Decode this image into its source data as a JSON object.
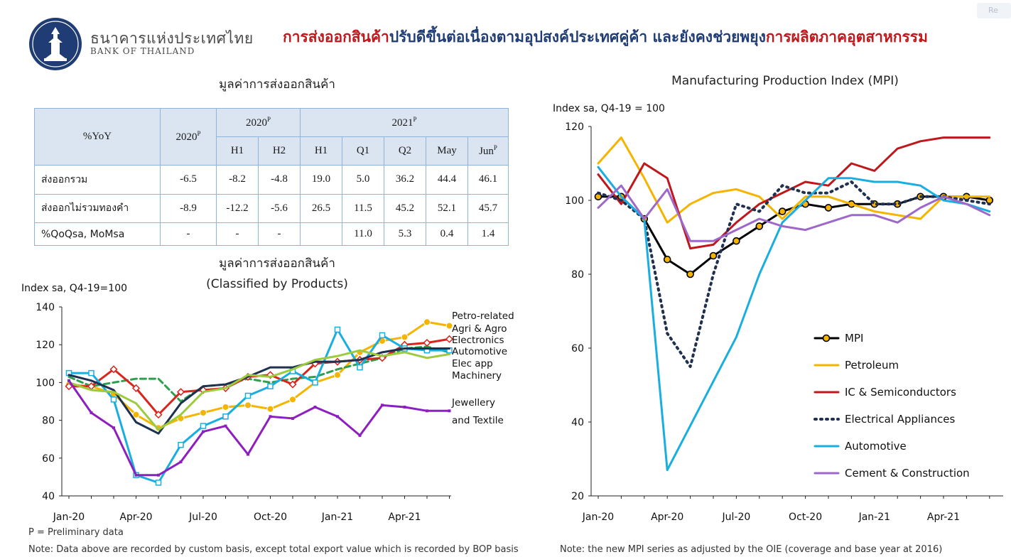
{
  "brand": {
    "name_th": "ธนาคารแห่งประเทศไทย",
    "name_en": "BANK OF THAILAND"
  },
  "top_right_tab": "Re",
  "headline": {
    "part1": "การส่งออกสินค้า",
    "part2": "ปรับดีขึ้นต่อเนื่องตามอุปสงค์ประเทศคู่ค้า และยังคงช่วยพยุง",
    "part3": "การผลิตภาคอุตสาหกรรม"
  },
  "table": {
    "title": "มูลค่าการส่งออกสินค้า",
    "corner": "%YoY",
    "col_2020": "2020",
    "col_2020_sup": "P",
    "group_2020": "2020",
    "group_2020_sup": "P",
    "group_2021": "2021",
    "group_2021_sup": "P",
    "sub_h1_2020": "H1",
    "sub_h2_2020": "H2",
    "sub_h1_2021": "H1",
    "sub_q1": "Q1",
    "sub_q2": "Q2",
    "sub_may": "May",
    "sub_jun": "Jun",
    "sub_jun_sup": "P",
    "rows": [
      {
        "label": "ส่งออกรวม",
        "values": [
          "-6.5",
          "-8.2",
          "-4.8",
          "19.0",
          "5.0",
          "36.2",
          "44.4",
          "46.1"
        ]
      },
      {
        "label": "ส่งออกไม่รวมทองคำ",
        "values": [
          "-8.9",
          "-12.2",
          "-5.6",
          "26.5",
          "11.5",
          "45.2",
          "52.1",
          "45.7"
        ]
      },
      {
        "label": "%QoQsa, MoMsa",
        "values": [
          "-",
          "-",
          "-",
          "",
          "11.0",
          "5.3",
          "0.4",
          "1.4"
        ]
      }
    ]
  },
  "notes": {
    "preliminary": "P = Preliminary data",
    "left": "Note: Data above are recorded by custom basis, except total export value which is recorded by BOP basis",
    "right": "Note: the new MPI series as adjusted by the OIE (coverage and base year at 2016)"
  },
  "chart_data": [
    {
      "type": "line",
      "title_line1": "มูลค่าการส่งออกสินค้า",
      "title_line2": "(Classified by Products)",
      "ylabel": "Index sa, Q4-19=100",
      "ylim": [
        40,
        140
      ],
      "yticks": [
        "40",
        "60",
        "80",
        "100",
        "120",
        "140"
      ],
      "x": [
        "Jan-20",
        "Feb-20",
        "Mar-20",
        "Apr-20",
        "May-20",
        "Jun-20",
        "Jul-20",
        "Aug-20",
        "Sep-20",
        "Oct-20",
        "Nov-20",
        "Dec-20",
        "Jan-21",
        "Feb-21",
        "Mar-21",
        "Apr-21",
        "May-21",
        "Jun-21"
      ],
      "xtick_labels": [
        "Jan-20",
        "Apr-20",
        "Jul-20",
        "Oct-20",
        "Jan-21",
        "Apr-21"
      ],
      "legend_groups": [
        {
          "labels": [
            "Petro-related"
          ],
          "color": "#f5b400"
        },
        {
          "labels": [
            "Agri & Agro"
          ],
          "color": "#2e9e4f"
        },
        {
          "labels": [
            "Electronics"
          ],
          "color": "#d9251c"
        },
        {
          "labels": [
            "Automotive"
          ],
          "color": "#19aee0"
        },
        {
          "labels": [
            "Elec app"
          ],
          "color": "#1f3050"
        },
        {
          "labels": [
            "Machinery"
          ],
          "color": "#9ccc3d"
        },
        {
          "labels": [
            "Jewellery",
            "and Textile"
          ],
          "color": "#8e1fbf"
        }
      ],
      "series": [
        {
          "name": "Petro-related",
          "color": "#f5b400",
          "marker": "circle",
          "values": [
            99,
            98,
            94,
            83,
            76,
            81,
            84,
            87,
            88,
            86,
            91,
            100,
            104,
            116,
            122,
            124,
            132,
            130
          ]
        },
        {
          "name": "Agri & Agro",
          "color": "#2e9e4f",
          "dash": "8 5",
          "values": [
            103,
            98,
            100,
            102,
            102,
            90,
            98,
            99,
            102,
            100,
            102,
            103,
            107,
            110,
            113,
            118,
            119,
            116
          ]
        },
        {
          "name": "Electronics",
          "color": "#d9251c",
          "marker": "diamond",
          "values": [
            98,
            98,
            107,
            97,
            83,
            95,
            96,
            97,
            103,
            104,
            99,
            110,
            111,
            112,
            113,
            120,
            121,
            123
          ]
        },
        {
          "name": "Automotive",
          "color": "#19aee0",
          "marker": "square",
          "values": [
            105,
            105,
            91,
            51,
            47,
            67,
            77,
            82,
            93,
            98,
            106,
            100,
            128,
            108,
            125,
            118,
            117,
            117
          ]
        },
        {
          "name": "Elec app",
          "color": "#1f3050",
          "values": [
            104,
            101,
            96,
            79,
            73,
            89,
            98,
            99,
            103,
            108,
            108,
            111,
            111,
            112,
            116,
            118,
            118,
            118
          ]
        },
        {
          "name": "Machinery",
          "color": "#9ccc3d",
          "values": [
            100,
            96,
            95,
            89,
            75,
            83,
            95,
            97,
            104,
            103,
            107,
            112,
            114,
            117,
            114,
            116,
            113,
            115
          ]
        },
        {
          "name": "Jewellery and Textile",
          "color": "#8e1fbf",
          "marker": "smallsquare",
          "values": [
            101,
            84,
            76,
            51,
            51,
            58,
            74,
            77,
            62,
            82,
            81,
            87,
            82,
            72,
            88,
            87,
            85,
            85
          ]
        }
      ]
    },
    {
      "type": "line",
      "title": "Manufacturing Production Index (MPI)",
      "ylabel": "Index sa, Q4-19 = 100",
      "ylim": [
        20,
        120
      ],
      "yticks": [
        "20",
        "40",
        "60",
        "80",
        "100",
        "120"
      ],
      "x": [
        "Jan-20",
        "Feb-20",
        "Mar-20",
        "Apr-20",
        "May-20",
        "Jun-20",
        "Jul-20",
        "Aug-20",
        "Sep-20",
        "Oct-20",
        "Nov-20",
        "Dec-20",
        "Jan-21",
        "Feb-21",
        "Mar-21",
        "Apr-21",
        "May-21",
        "Jun-21"
      ],
      "xtick_labels": [
        "Jan-20",
        "Apr-20",
        "Jul-20",
        "Oct-20",
        "Jan-21",
        "Apr-21"
      ],
      "legend_position": "center-right",
      "series": [
        {
          "name": "MPI",
          "color": "#000000",
          "marker": "circle",
          "marker_fill": "#f5b400",
          "values": [
            101,
            101,
            95,
            84,
            80,
            85,
            89,
            93,
            97,
            99,
            98,
            99,
            99,
            99,
            101,
            101,
            101,
            100
          ]
        },
        {
          "name": "Petroleum",
          "color": "#f5b400",
          "values": [
            110,
            117,
            106,
            94,
            99,
            102,
            103,
            101,
            95,
            101,
            101,
            99,
            97,
            96,
            95,
            101,
            101,
            101
          ]
        },
        {
          "name": "IC & Semiconductors",
          "color": "#c0171c",
          "values": [
            107,
            99,
            110,
            106,
            87,
            88,
            94,
            99,
            102,
            105,
            104,
            110,
            108,
            114,
            116,
            117,
            117,
            117
          ]
        },
        {
          "name": "Electrical Appliances",
          "color": "#1f3050",
          "dash": "2 6",
          "width": 4,
          "values": [
            102,
            100,
            95,
            64,
            55,
            80,
            99,
            97,
            104,
            102,
            102,
            105,
            99,
            99,
            101,
            101,
            100,
            99
          ]
        },
        {
          "name": "Automotive",
          "color": "#19aee0",
          "values": [
            109,
            101,
            95,
            27,
            39,
            51,
            63,
            80,
            94,
            100,
            106,
            106,
            105,
            105,
            104,
            100,
            99,
            97
          ]
        },
        {
          "name": "Cement & Construction",
          "color": "#9d68c9",
          "values": [
            98,
            104,
            95,
            103,
            89,
            89,
            92,
            95,
            93,
            92,
            94,
            96,
            96,
            94,
            98,
            101,
            99,
            96
          ]
        }
      ]
    }
  ]
}
